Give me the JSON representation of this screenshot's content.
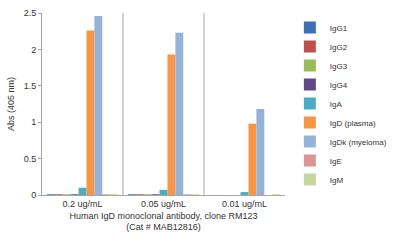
{
  "chart_data": {
    "type": "bar",
    "ylabel": "Abs (405 nm)",
    "xlabel": "Human IgD monoclonal antibody, clone RM123\n(Cat # MAB12816)",
    "categories": [
      "0.2 ug/mL",
      "0.05 ug/mL",
      "0.01 ug/mL"
    ],
    "series": [
      {
        "name": "IgG1",
        "color": "#3e6fb0",
        "values": [
          0.01,
          0.01,
          0.0
        ]
      },
      {
        "name": "IgG2",
        "color": "#c0504d",
        "values": [
          0.01,
          0.01,
          0.0
        ]
      },
      {
        "name": "IgG3",
        "color": "#9bbb59",
        "values": [
          0.01,
          0.01,
          0.0
        ]
      },
      {
        "name": "IgG4",
        "color": "#5f4b8b",
        "values": [
          0.01,
          0.01,
          0.0
        ]
      },
      {
        "name": "IgA",
        "color": "#4bacc6",
        "values": [
          0.1,
          0.07,
          0.04
        ]
      },
      {
        "name": "IgD (plasma)",
        "color": "#f79646",
        "values": [
          2.26,
          1.93,
          0.98
        ]
      },
      {
        "name": "IgDk (myeloma)",
        "color": "#95b3d7",
        "values": [
          2.46,
          2.23,
          1.18
        ]
      },
      {
        "name": "IgE",
        "color": "#d99694",
        "values": [
          0.01,
          0.01,
          0.0
        ]
      },
      {
        "name": "IgM",
        "color": "#c3d69b",
        "values": [
          0.01,
          0.01,
          0.01
        ]
      }
    ],
    "ylim": [
      0,
      2.5
    ],
    "yticks": [
      0,
      0.5,
      1,
      1.5,
      2,
      2.5
    ],
    "grid": false,
    "legend": "right"
  }
}
